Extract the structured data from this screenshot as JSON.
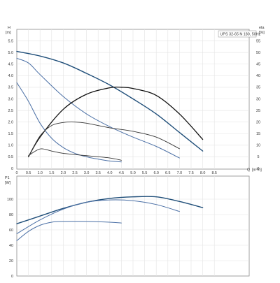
{
  "chart_data": [
    {
      "type": "line",
      "title": "UPS 32-65 N 180, 50Hz",
      "ylabel": "H",
      "ylabel_unit": "[m]",
      "y2label": "eta",
      "y2label_unit": "[%]",
      "xlabel": "Q",
      "xlabel_unit": "[m³/h]",
      "xlim": [
        0,
        10
      ],
      "ylim": [
        0,
        6
      ],
      "y2lim": [
        0,
        60
      ],
      "grid": true,
      "xticks": [
        "0",
        "0.5",
        "1.0",
        "1.5",
        "2.0",
        "2.5",
        "3.0",
        "3.5",
        "4.0",
        "4.5",
        "5.0",
        "5.5",
        "6.0",
        "6.5",
        "7.0",
        "7.5",
        "8.0",
        "8.5"
      ],
      "yticks": [
        "0",
        "0.5",
        "1.0",
        "1.5",
        "2.0",
        "2.5",
        "3.0",
        "3.5",
        "4.0",
        "4.5",
        "5.0",
        "5.5"
      ],
      "y2ticks": [
        "0",
        "5",
        "10",
        "15",
        "20",
        "25",
        "30",
        "35",
        "40",
        "45",
        "50",
        "55"
      ],
      "series": [
        {
          "axis": "H",
          "color": "#1f4e79",
          "width": 1.4,
          "x": [
            0,
            1,
            2,
            3,
            4,
            5,
            6,
            7,
            8
          ],
          "y": [
            5.05,
            4.85,
            4.55,
            4.1,
            3.6,
            3.0,
            2.35,
            1.55,
            0.75
          ]
        },
        {
          "axis": "H",
          "color": "#4a6fa5",
          "width": 1.0,
          "x": [
            0,
            0.5,
            1,
            2,
            3,
            4,
            5,
            6,
            7
          ],
          "y": [
            4.75,
            4.55,
            4.05,
            3.1,
            2.35,
            1.8,
            1.35,
            0.95,
            0.45
          ]
        },
        {
          "axis": "H",
          "color": "#4a6fa5",
          "width": 1.0,
          "x": [
            0,
            0.5,
            1,
            1.5,
            2,
            2.5,
            3,
            3.5,
            4,
            4.5
          ],
          "y": [
            3.7,
            2.9,
            1.95,
            1.3,
            0.9,
            0.65,
            0.5,
            0.4,
            0.32,
            0.28
          ]
        },
        {
          "axis": "eta",
          "color": "#111111",
          "width": 1.3,
          "x": [
            0.5,
            1,
            2,
            3,
            4,
            4.5,
            5,
            6,
            7,
            8
          ],
          "y": [
            5,
            13.5,
            25.5,
            32,
            34.8,
            35,
            34.5,
            31.5,
            23.5,
            12.5
          ]
        },
        {
          "axis": "eta",
          "color": "#333333",
          "width": 0.9,
          "x": [
            0.5,
            1,
            1.5,
            2,
            2.5,
            3,
            4,
            5,
            6,
            7
          ],
          "y": [
            5,
            14,
            18.5,
            19.8,
            20,
            19.5,
            17.5,
            16,
            13.5,
            8.5
          ]
        },
        {
          "axis": "eta",
          "color": "#333333",
          "width": 0.9,
          "x": [
            0.5,
            1,
            1.5,
            2,
            3,
            4,
            4.5
          ],
          "y": [
            5.5,
            8.4,
            7.5,
            6.5,
            5.5,
            4.5,
            3.5
          ]
        }
      ]
    },
    {
      "type": "line",
      "ylabel": "P1",
      "ylabel_unit": "[W]",
      "ylim": [
        0,
        130
      ],
      "xlim": [
        0,
        10
      ],
      "grid": true,
      "yticks": [
        "0",
        "20",
        "40",
        "60",
        "80",
        "100"
      ],
      "series": [
        {
          "color": "#1f4e79",
          "width": 1.4,
          "x": [
            0,
            1,
            2,
            3,
            4,
            5,
            6,
            7,
            8
          ],
          "y": [
            68,
            78,
            88,
            96,
            101,
            103,
            103,
            97,
            89
          ]
        },
        {
          "color": "#4a6fa5",
          "width": 1.0,
          "x": [
            0,
            1,
            2,
            3,
            4,
            5,
            6,
            7
          ],
          "y": [
            55,
            73,
            87,
            96,
            99,
            98,
            93,
            84
          ]
        },
        {
          "color": "#4a6fa5",
          "width": 1.0,
          "x": [
            0,
            0.5,
            1,
            1.5,
            2,
            3,
            4,
            4.5
          ],
          "y": [
            46,
            58,
            66,
            70,
            71,
            71,
            70,
            69
          ]
        }
      ]
    }
  ]
}
